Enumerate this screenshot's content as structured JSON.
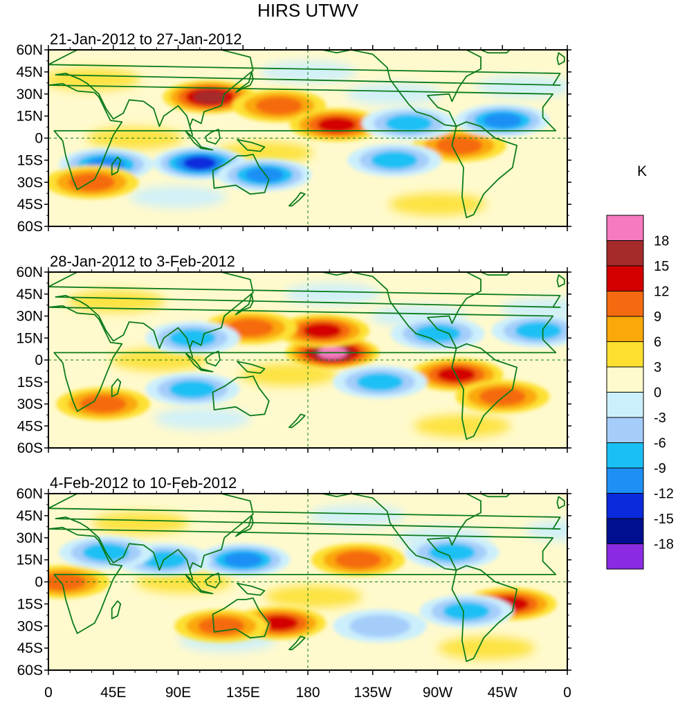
{
  "chart_data": {
    "type": "heatmap",
    "title": "HIRS UTWV",
    "units": "K",
    "x_ticks": [
      "0",
      "45E",
      "90E",
      "135E",
      "180",
      "135W",
      "90W",
      "45W",
      "0"
    ],
    "y_ticks": [
      "60N",
      "45N",
      "30N",
      "15N",
      "0",
      "15S",
      "30S",
      "45S",
      "60S"
    ],
    "lon_range": [
      0,
      360
    ],
    "lat_range": [
      -60,
      60
    ],
    "colorbar_labels": [
      "18",
      "15",
      "12",
      "9",
      "6",
      "3",
      "0",
      "-3",
      "-6",
      "-9",
      "-12",
      "-15",
      "-18"
    ],
    "colorbar_colors": [
      "#f57ac0",
      "#a52a2a",
      "#d40000",
      "#f56a10",
      "#fba80a",
      "#fde030",
      "#fffacd",
      "#cceffc",
      "#a5cdfa",
      "#1ac0f5",
      "#1e8ff5",
      "#0a2adc",
      "#000f8f",
      "#8a2be2"
    ],
    "panels": [
      {
        "title": "21-Jan-2012 to 27-Jan-2012",
        "anomalies": [
          {
            "lon": 112,
            "lat": 28,
            "value": 15
          },
          {
            "lon": 160,
            "lat": 22,
            "value": 9
          },
          {
            "lon": 200,
            "lat": 9,
            "value": 12
          },
          {
            "lon": 285,
            "lat": -5,
            "value": 9
          },
          {
            "lon": 105,
            "lat": -17,
            "value": -15
          },
          {
            "lon": 40,
            "lat": -18,
            "value": -12
          },
          {
            "lon": 150,
            "lat": -25,
            "value": -12
          },
          {
            "lon": 240,
            "lat": -15,
            "value": -9
          },
          {
            "lon": 315,
            "lat": 12,
            "value": -12
          },
          {
            "lon": 250,
            "lat": 10,
            "value": -9
          },
          {
            "lon": 30,
            "lat": -30,
            "value": 9
          }
        ]
      },
      {
        "title": "28-Jan-2012 to 3-Feb-2012",
        "anomalies": [
          {
            "lon": 197,
            "lat": 5,
            "value": 18
          },
          {
            "lon": 190,
            "lat": 20,
            "value": 12
          },
          {
            "lon": 140,
            "lat": 22,
            "value": 9
          },
          {
            "lon": 283,
            "lat": -10,
            "value": 12
          },
          {
            "lon": 100,
            "lat": 15,
            "value": -9
          },
          {
            "lon": 100,
            "lat": -20,
            "value": -9
          },
          {
            "lon": 230,
            "lat": -15,
            "value": -9
          },
          {
            "lon": 270,
            "lat": 18,
            "value": -9
          },
          {
            "lon": 340,
            "lat": 20,
            "value": -9
          },
          {
            "lon": 315,
            "lat": -25,
            "value": 9
          },
          {
            "lon": 38,
            "lat": -30,
            "value": 9
          }
        ]
      },
      {
        "title": "4-Feb-2012 to 10-Feb-2012",
        "anomalies": [
          {
            "lon": 215,
            "lat": 15,
            "value": 9
          },
          {
            "lon": 160,
            "lat": -28,
            "value": 12
          },
          {
            "lon": 135,
            "lat": 15,
            "value": -12
          },
          {
            "lon": 80,
            "lat": 15,
            "value": -9
          },
          {
            "lon": 40,
            "lat": 20,
            "value": -9
          },
          {
            "lon": 280,
            "lat": 20,
            "value": -9
          },
          {
            "lon": 320,
            "lat": -15,
            "value": 12
          },
          {
            "lon": 290,
            "lat": -20,
            "value": -9
          },
          {
            "lon": 120,
            "lat": -30,
            "value": 9
          },
          {
            "lon": 10,
            "lat": 0,
            "value": 9
          },
          {
            "lon": 230,
            "lat": -30,
            "value": -6
          }
        ]
      }
    ]
  }
}
